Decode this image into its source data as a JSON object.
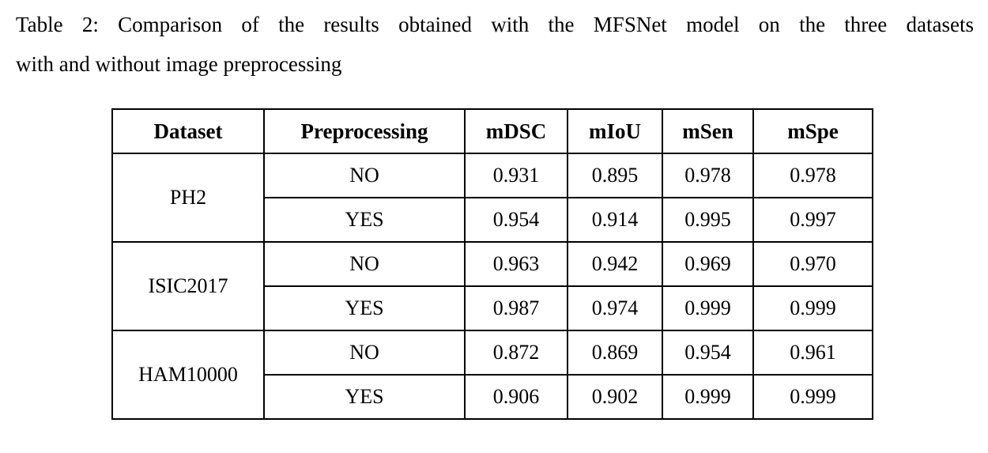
{
  "caption": {
    "line1": "Table 2: Comparison of the results obtained with the MFSNet model on the three datasets",
    "line2": "with and without image preprocessing"
  },
  "table": {
    "headers": [
      "Dataset",
      "Preprocessing",
      "mDSC",
      "mIoU",
      "mSen",
      "mSpe"
    ],
    "groups": [
      {
        "dataset": "PH2",
        "rows": [
          {
            "preprocessing": "NO",
            "values": [
              "0.931",
              "0.895",
              "0.978",
              "0.978"
            ]
          },
          {
            "preprocessing": "YES",
            "values": [
              "0.954",
              "0.914",
              "0.995",
              "0.997"
            ]
          }
        ]
      },
      {
        "dataset": "ISIC2017",
        "rows": [
          {
            "preprocessing": "NO",
            "values": [
              "0.963",
              "0.942",
              "0.969",
              "0.970"
            ]
          },
          {
            "preprocessing": "YES",
            "values": [
              "0.987",
              "0.974",
              "0.999",
              "0.999"
            ]
          }
        ]
      },
      {
        "dataset": "HAM10000",
        "rows": [
          {
            "preprocessing": "NO",
            "values": [
              "0.872",
              "0.869",
              "0.954",
              "0.961"
            ]
          },
          {
            "preprocessing": "YES",
            "values": [
              "0.906",
              "0.902",
              "0.999",
              "0.999"
            ]
          }
        ]
      }
    ]
  }
}
